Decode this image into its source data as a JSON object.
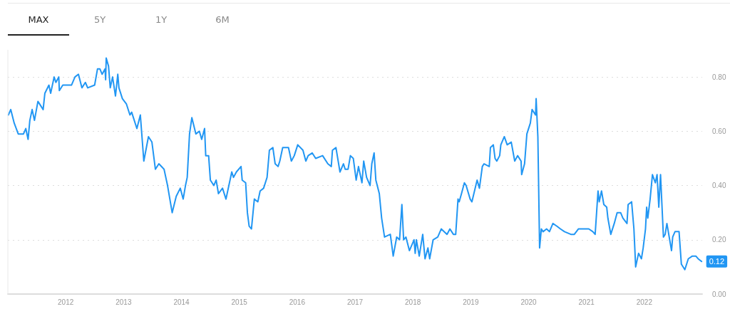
{
  "chart_data": {
    "type": "line",
    "annotations": [
      "MAX",
      "5Y",
      "1Y",
      "6M"
    ],
    "xlim": [
      2011,
      2023
    ],
    "xticks": [
      2012,
      2013,
      2014,
      2015,
      2016,
      2017,
      2018,
      2019,
      2020,
      2021,
      2022
    ],
    "ylim": [
      0,
      0.9
    ],
    "yticks": [
      {
        "value": 0,
        "label": "0.00"
      },
      {
        "value": 0.2,
        "label": "0.20"
      },
      {
        "value": 0.4,
        "label": "0.40"
      },
      {
        "value": 0.6,
        "label": "0.60"
      },
      {
        "value": 0.8,
        "label": "0.80"
      }
    ],
    "grid": "y",
    "marker": "none",
    "line_style": "solid",
    "series": [
      {
        "color": "#2196f3",
        "x": [
          2011.01,
          2011.05,
          2011.11,
          2011.18,
          2011.27,
          2011.31,
          2011.35,
          2011.38,
          2011.42,
          2011.46,
          2011.52,
          2011.61,
          2011.64,
          2011.71,
          2011.74,
          2011.8,
          2011.83,
          2011.88,
          2011.89,
          2011.95,
          2012.1,
          2012.16,
          2012.22,
          2012.28,
          2012.34,
          2012.38,
          2012.5,
          2012.55,
          2012.59,
          2012.63,
          2012.68,
          2012.69,
          2012.7,
          2012.74,
          2012.77,
          2012.81,
          2012.86,
          2012.9,
          2012.92,
          2012.98,
          2013.05,
          2013.11,
          2013.14,
          2013.23,
          2013.29,
          2013.35,
          2013.43,
          2013.49,
          2013.55,
          2013.61,
          2013.7,
          2013.76,
          2013.84,
          2013.91,
          2013.98,
          2014.03,
          2014.07,
          2014.1,
          2014.14,
          2014.18,
          2014.25,
          2014.31,
          2014.35,
          2014.4,
          2014.42,
          2014.47,
          2014.5,
          2014.56,
          2014.6,
          2014.64,
          2014.71,
          2014.77,
          2014.82,
          2014.87,
          2014.9,
          2014.95,
          2015.03,
          2015.05,
          2015.11,
          2015.14,
          2015.17,
          2015.21,
          2015.26,
          2015.32,
          2015.36,
          2015.42,
          2015.48,
          2015.52,
          2015.58,
          2015.62,
          2015.67,
          2015.7,
          2015.75,
          2015.81,
          2015.85,
          2015.9,
          2015.95,
          2016.01,
          2016.1,
          2016.15,
          2016.19,
          2016.26,
          2016.32,
          2016.44,
          2016.53,
          2016.59,
          2016.61,
          2016.67,
          2016.74,
          2016.8,
          2016.83,
          2016.88,
          2016.92,
          2016.97,
          2017.02,
          2017.06,
          2017.12,
          2017.15,
          2017.2,
          2017.26,
          2017.29,
          2017.33,
          2017.36,
          2017.42,
          2017.46,
          2017.51,
          2017.61,
          2017.66,
          2017.72,
          2017.77,
          2017.81,
          2017.84,
          2017.88,
          2017.94,
          2018.02,
          2018.04,
          2018.06,
          2018.11,
          2018.17,
          2018.21,
          2018.26,
          2018.29,
          2018.35,
          2018.43,
          2018.49,
          2018.59,
          2018.64,
          2018.7,
          2018.74,
          2018.78,
          2018.8,
          2018.84,
          2018.89,
          2018.92,
          2018.99,
          2019.02,
          2019.11,
          2019.15,
          2019.2,
          2019.23,
          2019.32,
          2019.34,
          2019.39,
          2019.42,
          2019.45,
          2019.5,
          2019.52,
          2019.58,
          2019.63,
          2019.7,
          2019.76,
          2019.81,
          2019.87,
          2019.88,
          2019.93,
          2019.97,
          2020.03,
          2020.06,
          2020.12,
          2020.13,
          2020.16,
          2020.19,
          2020.22,
          2020.25,
          2020.31,
          2020.36,
          2020.42,
          2020.49,
          2020.55,
          2020.62,
          2020.73,
          2020.79,
          2020.86,
          2020.92,
          2021.04,
          2021.11,
          2021.15,
          2021.2,
          2021.22,
          2021.26,
          2021.3,
          2021.35,
          2021.37,
          2021.42,
          2021.48,
          2021.53,
          2021.59,
          2021.63,
          2021.7,
          2021.72,
          2021.78,
          2021.82,
          2021.85,
          2021.9,
          2021.95,
          2021.98,
          2022.02,
          2022.04,
          2022.06,
          2022.1,
          2022.14,
          2022.19,
          2022.22,
          2022.25,
          2022.28,
          2022.33,
          2022.36,
          2022.39,
          2022.47,
          2022.49,
          2022.53,
          2022.6,
          2022.64,
          2022.7,
          2022.76,
          2022.83,
          2022.89,
          2022.93,
          2022.99
        ],
        "values": [
          0.66,
          0.68,
          0.63,
          0.59,
          0.59,
          0.61,
          0.57,
          0.64,
          0.68,
          0.64,
          0.71,
          0.68,
          0.74,
          0.77,
          0.74,
          0.8,
          0.78,
          0.8,
          0.75,
          0.77,
          0.77,
          0.8,
          0.81,
          0.76,
          0.78,
          0.76,
          0.77,
          0.83,
          0.83,
          0.81,
          0.83,
          0.79,
          0.87,
          0.84,
          0.76,
          0.8,
          0.73,
          0.81,
          0.76,
          0.72,
          0.7,
          0.66,
          0.67,
          0.61,
          0.66,
          0.49,
          0.58,
          0.56,
          0.46,
          0.48,
          0.46,
          0.4,
          0.3,
          0.36,
          0.39,
          0.35,
          0.4,
          0.43,
          0.59,
          0.65,
          0.59,
          0.6,
          0.57,
          0.61,
          0.51,
          0.51,
          0.42,
          0.4,
          0.42,
          0.37,
          0.39,
          0.35,
          0.4,
          0.45,
          0.43,
          0.45,
          0.47,
          0.42,
          0.41,
          0.3,
          0.25,
          0.24,
          0.35,
          0.34,
          0.38,
          0.39,
          0.43,
          0.53,
          0.54,
          0.48,
          0.47,
          0.49,
          0.54,
          0.54,
          0.54,
          0.49,
          0.51,
          0.55,
          0.53,
          0.49,
          0.51,
          0.52,
          0.5,
          0.51,
          0.48,
          0.47,
          0.53,
          0.54,
          0.45,
          0.48,
          0.46,
          0.46,
          0.51,
          0.5,
          0.42,
          0.47,
          0.41,
          0.49,
          0.43,
          0.4,
          0.48,
          0.52,
          0.42,
          0.37,
          0.28,
          0.21,
          0.22,
          0.14,
          0.21,
          0.2,
          0.33,
          0.2,
          0.21,
          0.16,
          0.2,
          0.15,
          0.2,
          0.14,
          0.22,
          0.13,
          0.17,
          0.13,
          0.2,
          0.21,
          0.24,
          0.22,
          0.24,
          0.22,
          0.22,
          0.35,
          0.34,
          0.37,
          0.41,
          0.4,
          0.35,
          0.34,
          0.42,
          0.39,
          0.47,
          0.48,
          0.47,
          0.54,
          0.55,
          0.5,
          0.49,
          0.51,
          0.55,
          0.58,
          0.55,
          0.56,
          0.49,
          0.51,
          0.49,
          0.44,
          0.48,
          0.59,
          0.63,
          0.68,
          0.66,
          0.72,
          0.58,
          0.17,
          0.24,
          0.23,
          0.24,
          0.23,
          0.26,
          0.25,
          0.24,
          0.23,
          0.22,
          0.22,
          0.24,
          0.24,
          0.24,
          0.23,
          0.22,
          0.38,
          0.34,
          0.38,
          0.33,
          0.32,
          0.28,
          0.22,
          0.26,
          0.3,
          0.3,
          0.28,
          0.26,
          0.33,
          0.34,
          0.24,
          0.1,
          0.15,
          0.13,
          0.17,
          0.24,
          0.32,
          0.28,
          0.35,
          0.44,
          0.41,
          0.44,
          0.32,
          0.44,
          0.21,
          0.22,
          0.26,
          0.16,
          0.21,
          0.23,
          0.23,
          0.11,
          0.09,
          0.13,
          0.14,
          0.14,
          0.13,
          0.12
        ],
        "value_labels": [
          null,
          null,
          null,
          null,
          null,
          null,
          null,
          null,
          null,
          null,
          null,
          null,
          null,
          null,
          null,
          null,
          null,
          null,
          null,
          null,
          null,
          null,
          null,
          null,
          null,
          null,
          null,
          null,
          null,
          null,
          null,
          null,
          null,
          null,
          null,
          null,
          null,
          null,
          null,
          null,
          null,
          null,
          null,
          null,
          null,
          null,
          null,
          null,
          null,
          null,
          null,
          null,
          null,
          null,
          null,
          null,
          null,
          null,
          null,
          null,
          null,
          null,
          null,
          null,
          null,
          null,
          null,
          null,
          null,
          null,
          null,
          null,
          null,
          null,
          null,
          null,
          null,
          null,
          null,
          null,
          null,
          null,
          null,
          null,
          null,
          null,
          null,
          null,
          null,
          null,
          null,
          null,
          null,
          null,
          null,
          null,
          null,
          null,
          null,
          null,
          null,
          null,
          null,
          null,
          null,
          null,
          null,
          null,
          null,
          null,
          null,
          null,
          null,
          null,
          null,
          null,
          null,
          null,
          null,
          null,
          null,
          null,
          null,
          null,
          null,
          null,
          null,
          null,
          null,
          null,
          null,
          null,
          null,
          null,
          null,
          null,
          null,
          null,
          null,
          null,
          null,
          null,
          null,
          null,
          null,
          null,
          null,
          null,
          null,
          null,
          null,
          null,
          null,
          null,
          null,
          null,
          null,
          null,
          null,
          null,
          null,
          null,
          null,
          null,
          null,
          null,
          null,
          null,
          null,
          null,
          null,
          null,
          null,
          null,
          null,
          null,
          null,
          null,
          null,
          null,
          null,
          null,
          null,
          null,
          null,
          null,
          null,
          null,
          null,
          null,
          null,
          null,
          null,
          null,
          null,
          null,
          null,
          null,
          null,
          null,
          null,
          null,
          null,
          null,
          null,
          null,
          null,
          null,
          null,
          null,
          null,
          null,
          null,
          null,
          null,
          null,
          null,
          null,
          null,
          null,
          null,
          null,
          null,
          null,
          null,
          null,
          null,
          null,
          null,
          null,
          null,
          null,
          null,
          null,
          null,
          null,
          null,
          null,
          "0.12"
        ]
      }
    ]
  }
}
